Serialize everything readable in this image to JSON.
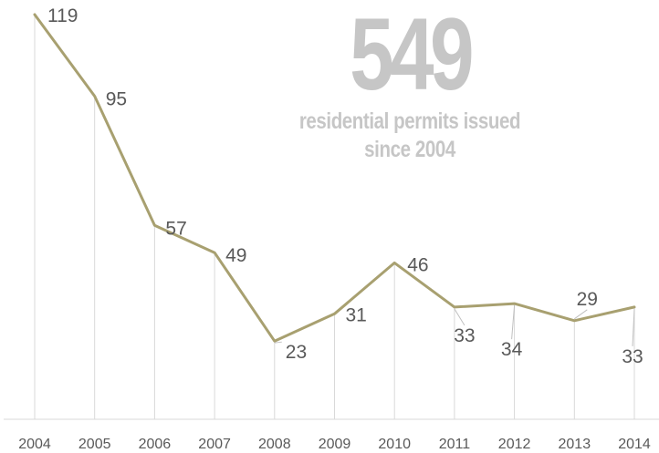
{
  "highlight": {
    "number": "549",
    "caption_line1": "residential permits issued",
    "caption_line2": "since 2004"
  },
  "chart_data": {
    "type": "line",
    "title": "",
    "xlabel": "",
    "ylabel": "",
    "categories": [
      "2004",
      "2005",
      "2006",
      "2007",
      "2008",
      "2009",
      "2010",
      "2011",
      "2012",
      "2013",
      "2014"
    ],
    "series": [
      {
        "values": [
          119,
          95,
          57,
          49,
          23,
          31,
          46,
          33,
          34,
          29,
          33
        ]
      }
    ],
    "ylim": [
      0,
      120
    ],
    "grid": false,
    "drop_lines": true,
    "colors": {
      "line": "#a8a070",
      "drop_line": "#d9d9d9",
      "axis": "#d9d9d9",
      "text": "#595959",
      "highlight": "#c6c6c6"
    }
  }
}
